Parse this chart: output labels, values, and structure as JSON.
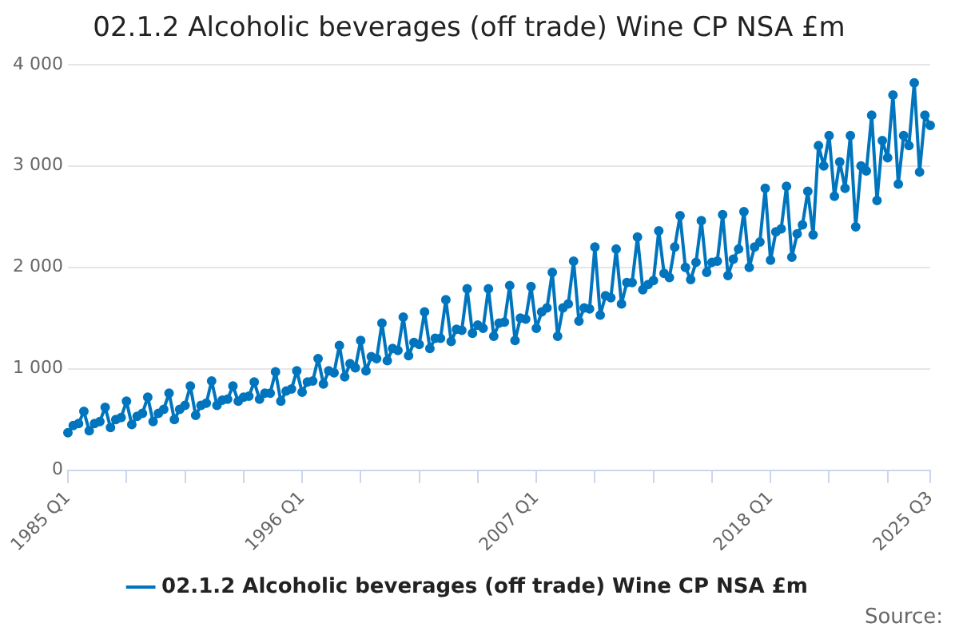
{
  "chart_data": {
    "type": "line",
    "title": "02.1.2 Alcoholic beverages (off trade) Wine CP NSA £m",
    "categories": [
      "1985 Q1",
      null,
      null,
      null,
      null,
      null,
      null,
      null,
      null,
      null,
      null,
      null,
      null,
      null,
      null,
      null,
      null,
      null,
      null,
      null,
      null,
      null,
      null,
      null,
      null,
      null,
      null,
      null,
      null,
      null,
      null,
      null,
      null,
      null,
      null,
      null,
      null,
      null,
      null,
      null,
      null,
      null,
      null,
      null,
      "1996 Q1",
      null,
      null,
      null,
      null,
      null,
      null,
      null,
      null,
      null,
      null,
      null,
      null,
      null,
      null,
      null,
      null,
      null,
      null,
      null,
      null,
      null,
      null,
      null,
      null,
      null,
      null,
      null,
      null,
      null,
      null,
      null,
      null,
      null,
      null,
      null,
      null,
      null,
      null,
      null,
      null,
      null,
      null,
      null,
      "2007 Q1",
      null,
      null,
      null,
      null,
      null,
      null,
      null,
      null,
      null,
      null,
      null,
      null,
      null,
      null,
      null,
      null,
      null,
      null,
      null,
      null,
      null,
      null,
      null,
      null,
      null,
      null,
      null,
      null,
      null,
      null,
      null,
      null,
      null,
      null,
      null,
      null,
      null,
      null,
      null,
      null,
      null,
      null,
      null,
      "2018 Q1",
      null,
      null,
      null,
      null,
      null,
      null,
      null,
      null,
      null,
      null,
      null,
      null,
      null,
      null,
      null,
      null,
      null,
      null,
      null,
      null,
      null,
      null,
      null,
      null,
      null,
      null,
      null,
      null,
      null,
      "2025 Q3"
    ],
    "series": [
      {
        "name": "02.1.2 Alcoholic beverages (off trade) Wine CP NSA £m",
        "color": "#0075be",
        "values": [
          370,
          440,
          460,
          580,
          390,
          460,
          480,
          620,
          420,
          500,
          520,
          680,
          450,
          530,
          560,
          720,
          480,
          560,
          600,
          760,
          500,
          600,
          640,
          830,
          540,
          640,
          660,
          880,
          640,
          690,
          700,
          830,
          680,
          720,
          730,
          870,
          700,
          760,
          760,
          970,
          680,
          780,
          800,
          980,
          770,
          870,
          880,
          1100,
          850,
          980,
          960,
          1230,
          920,
          1050,
          1010,
          1280,
          980,
          1120,
          1100,
          1450,
          1080,
          1200,
          1180,
          1510,
          1130,
          1260,
          1240,
          1560,
          1200,
          1300,
          1300,
          1680,
          1270,
          1390,
          1380,
          1790,
          1350,
          1430,
          1400,
          1790,
          1320,
          1450,
          1460,
          1820,
          1280,
          1500,
          1490,
          1810,
          1400,
          1560,
          1600,
          1950,
          1320,
          1600,
          1640,
          2060,
          1470,
          1600,
          1590,
          2200,
          1530,
          1720,
          1700,
          2180,
          1640,
          1850,
          1850,
          2300,
          1780,
          1830,
          1870,
          2360,
          1940,
          1900,
          2200,
          2510,
          2000,
          1880,
          2050,
          2460,
          1950,
          2050,
          2060,
          2520,
          1920,
          2080,
          2180,
          2550,
          2000,
          2200,
          2250,
          2780,
          2070,
          2350,
          2380,
          2800,
          2100,
          2330,
          2420,
          2750,
          2320,
          3200,
          3000,
          3300,
          2700,
          3040,
          2780,
          3300,
          2400,
          3000,
          2950,
          3500,
          2660,
          3250,
          3080,
          3700,
          2820,
          3300,
          3200,
          3820,
          2940,
          3500,
          3400
        ]
      }
    ],
    "ylim": [
      0,
      4000
    ],
    "yticks": [
      0,
      {
        "value": 1000,
        "label": "1 000"
      },
      {
        "value": 2000,
        "label": "2 000"
      },
      {
        "value": 3000,
        "label": "3 000"
      },
      {
        "value": 4000,
        "label": "4 000"
      }
    ],
    "grid": "y",
    "legend": "bottom",
    "marker": "circle",
    "line_style": "solid",
    "annotations": [
      "Source:"
    ]
  }
}
